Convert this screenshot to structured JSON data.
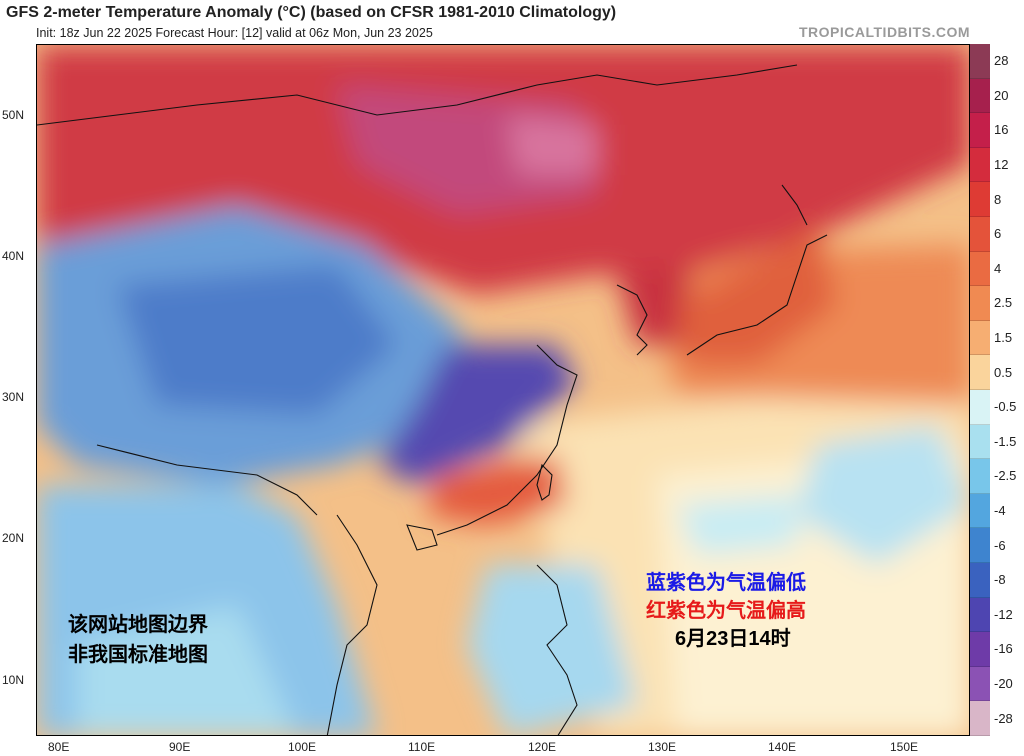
{
  "title": "GFS 2-meter Temperature Anomaly (°C) (based on CFSR 1981-2010 Climatology)",
  "subtitle": "Init: 18z Jun 22 2025   Forecast Hour: [12]   valid at 06z Mon, Jun 23 2025",
  "brand": "TROPICALTIDBITS.COM",
  "latitude_labels": [
    "50N",
    "40N",
    "30N",
    "20N",
    "10N"
  ],
  "longitude_labels": [
    "80E",
    "90E",
    "100E",
    "110E",
    "120E",
    "130E",
    "140E",
    "150E"
  ],
  "colorbar": {
    "labels": [
      "28",
      "20",
      "16",
      "12",
      "8",
      "6",
      "4",
      "2.5",
      "1.5",
      "0.5",
      "-0.5",
      "-1.5",
      "-2.5",
      "-4",
      "-6",
      "-8",
      "-12",
      "-16",
      "-20",
      "-28"
    ],
    "colors": [
      "#8c3a55",
      "#a6204d",
      "#c41f4a",
      "#d42c3d",
      "#de3b34",
      "#e4533a",
      "#ea6b42",
      "#f08a52",
      "#f6ae72",
      "#fad49c",
      "#d9f3f5",
      "#a9e0ef",
      "#78c6ea",
      "#53a6df",
      "#3e84cf",
      "#3a62bf",
      "#4e45b1",
      "#6e3ba8",
      "#8b52b4",
      "#d9b6c8"
    ]
  },
  "annotations": {
    "blue_note": "蓝紫色为气温偏低",
    "red_note": "红紫色为气温偏高",
    "date_note": "6月23日14时",
    "border_note_1": "该网站地图边界",
    "border_note_2": "非我国标准地图"
  }
}
